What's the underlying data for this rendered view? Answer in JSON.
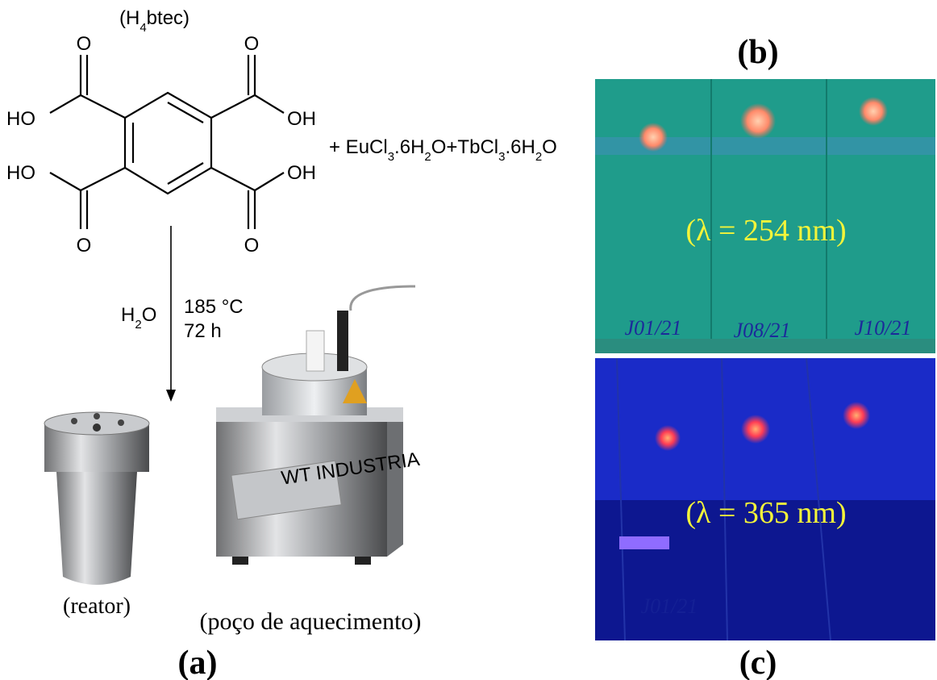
{
  "figure": {
    "reagent_label": [
      "(H",
      "4",
      "btec)"
    ],
    "atoms": [
      "O",
      "O",
      "HO",
      "OH",
      "HO",
      "OH",
      "O",
      "O"
    ],
    "reactants": [
      "+ EuCl",
      "3",
      ".6H",
      "2",
      "O+TbCl",
      "3",
      ".6H",
      "2",
      "O"
    ],
    "solvent": [
      "H",
      "2",
      "O"
    ],
    "temperature": "185 °C",
    "time": "72 h",
    "reactor_label": "(reator)",
    "heater_label": "(poço de aquecimento)",
    "heater_brand": "WT INDUSTRIA",
    "panel_a": "(a)",
    "panel_b": "(b)",
    "panel_c": "(c)",
    "excitation_b": "(λ = 254 nm)",
    "excitation_c": "(λ = 365 nm)",
    "samples_b": [
      "J01/21",
      "J08/21",
      "J10/21"
    ],
    "samples_c": [
      "J01/21"
    ]
  }
}
